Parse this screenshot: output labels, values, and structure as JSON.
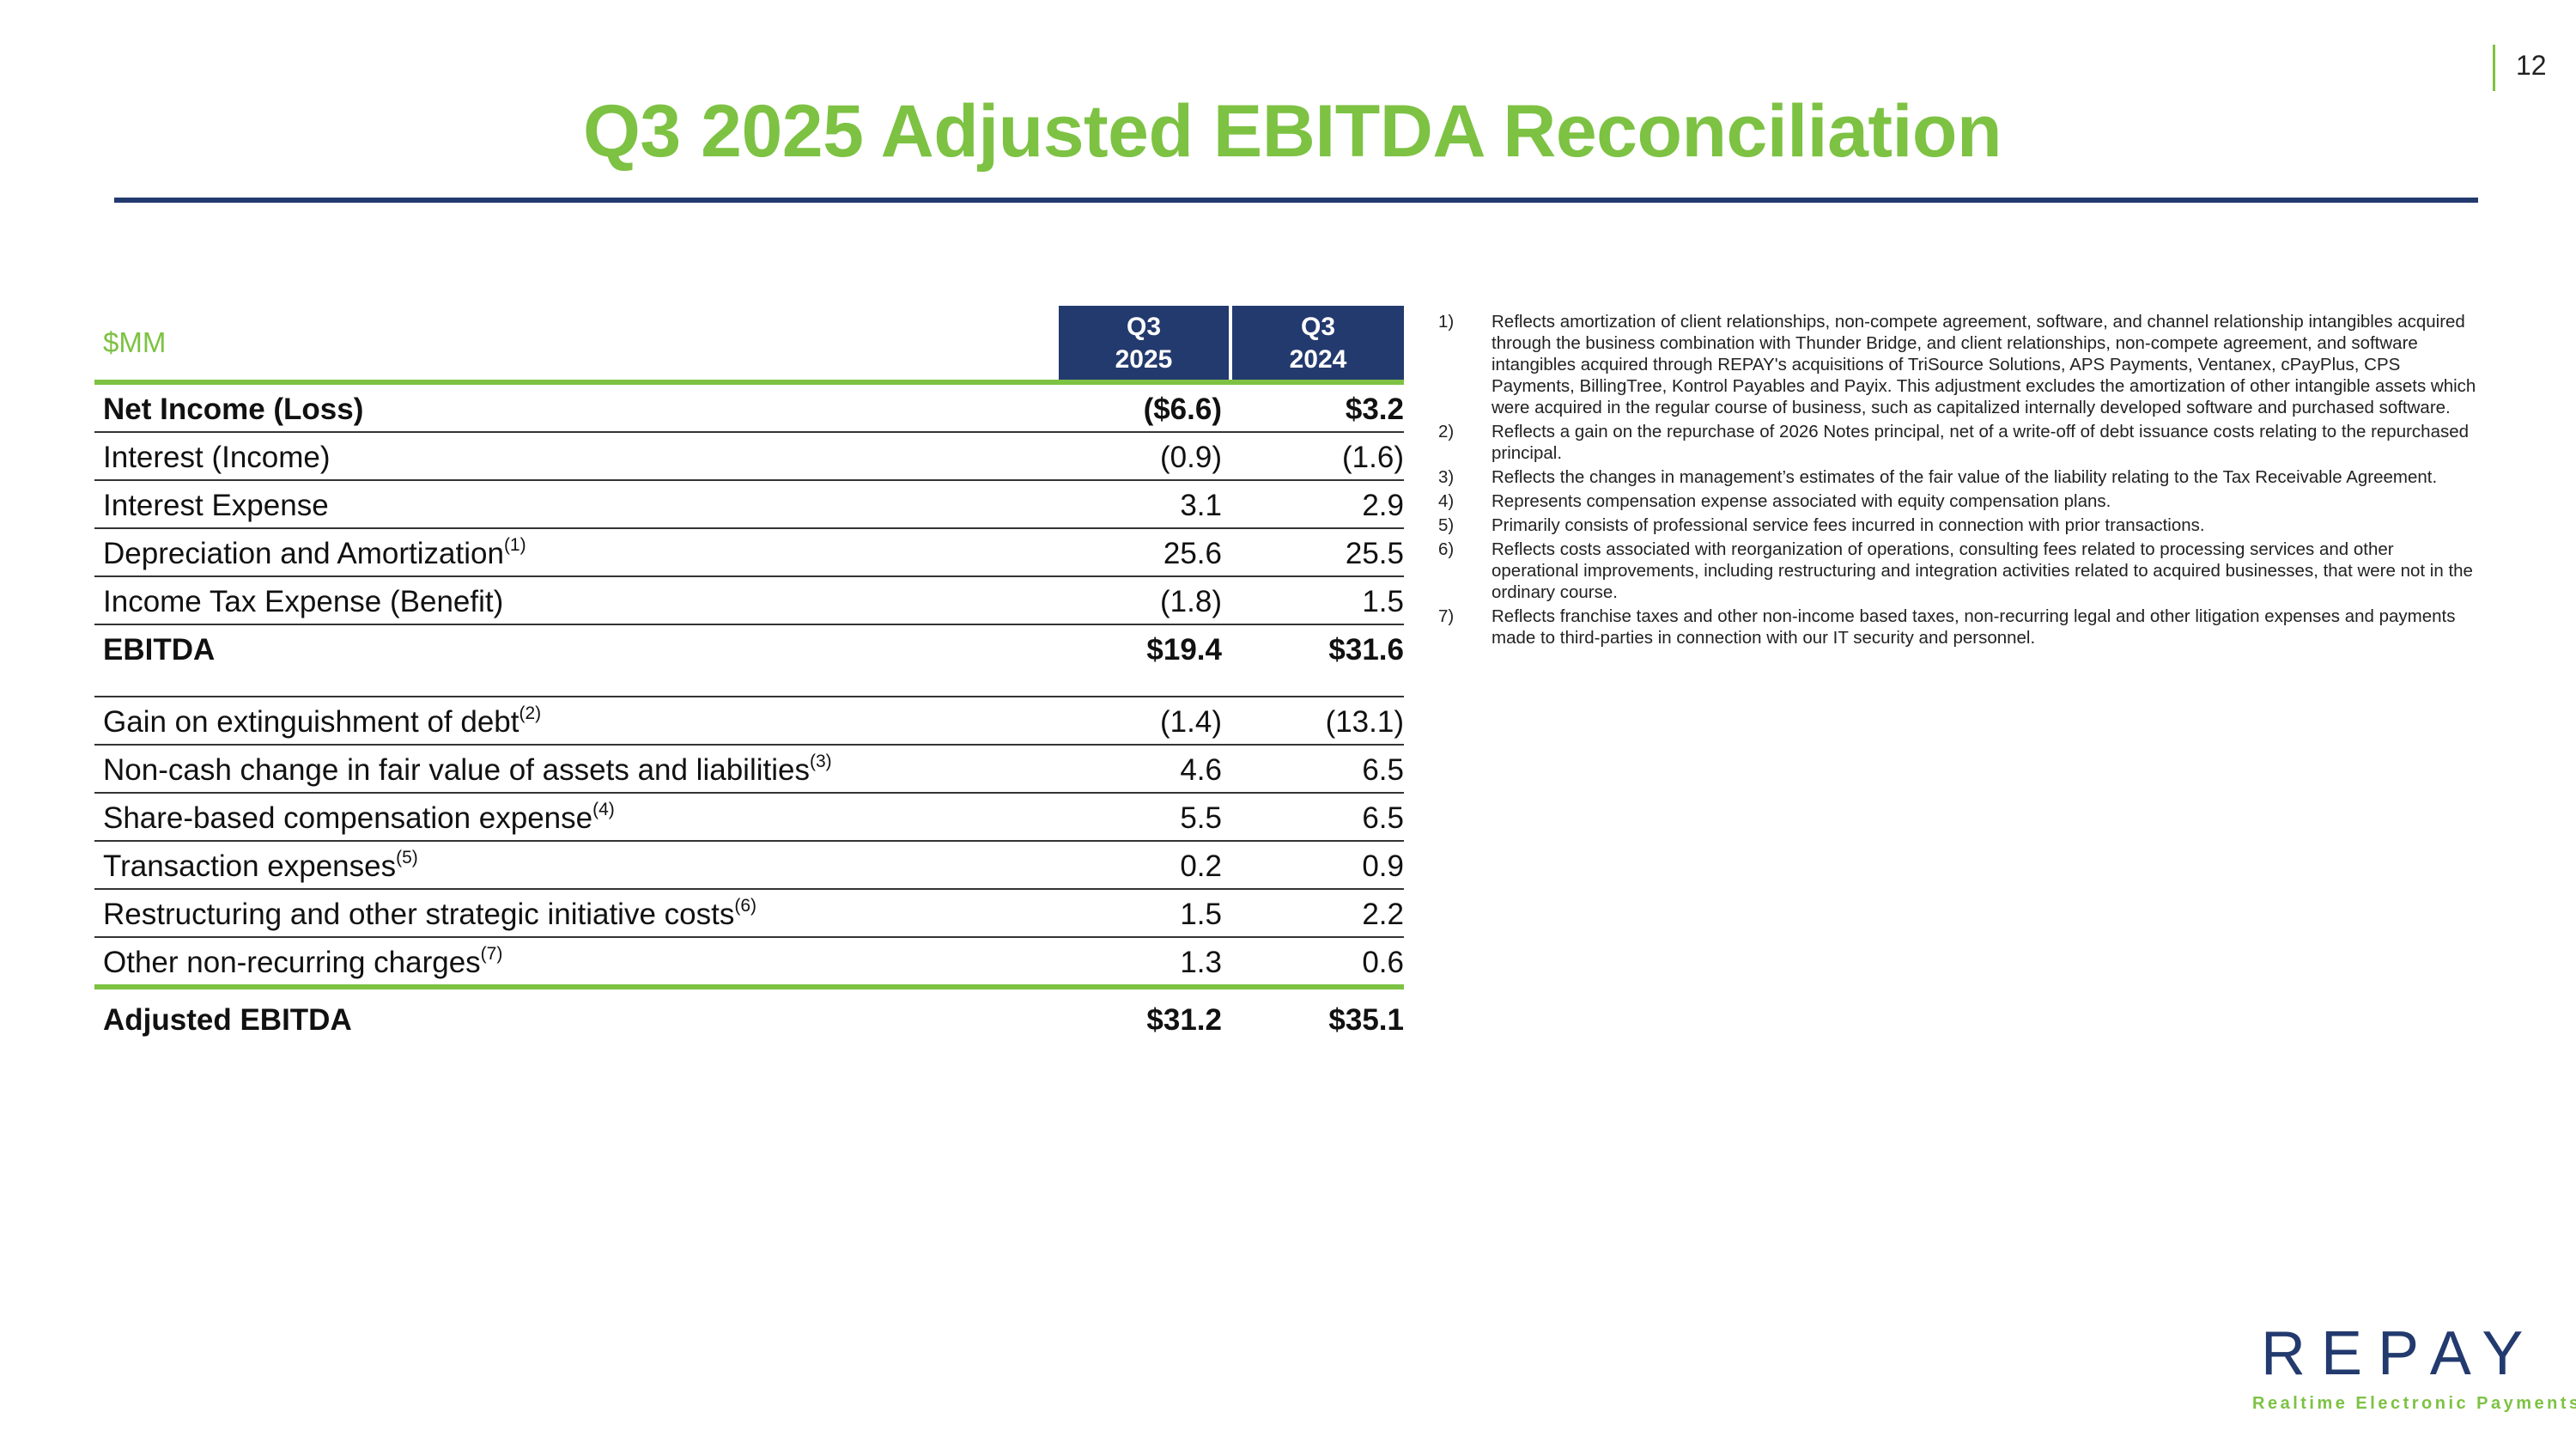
{
  "page_number": "12",
  "title": "Q3 2025 Adjusted EBITDA Reconciliation",
  "table": {
    "unit_label": "$MM",
    "col1": {
      "line1": "Q3",
      "line2": "2025"
    },
    "col2": {
      "line1": "Q3",
      "line2": "2024"
    },
    "rows": [
      {
        "label": "Net Income (Loss)",
        "sup": "",
        "v1": "($6.6)",
        "v2": "$3.2"
      },
      {
        "label": "Interest (Income)",
        "sup": "",
        "v1": "(0.9)",
        "v2": "(1.6)"
      },
      {
        "label": "Interest Expense",
        "sup": "",
        "v1": "3.1",
        "v2": "2.9"
      },
      {
        "label": "Depreciation and Amortization",
        "sup": "(1)",
        "v1": "25.6",
        "v2": "25.5"
      },
      {
        "label": "Income Tax Expense (Benefit)",
        "sup": "",
        "v1": "(1.8)",
        "v2": "1.5"
      },
      {
        "label": "EBITDA",
        "sup": "",
        "v1": "$19.4",
        "v2": "$31.6"
      },
      {
        "label": "Gain on extinguishment of debt",
        "sup": "(2)",
        "v1": "(1.4)",
        "v2": "(13.1)"
      },
      {
        "label": "Non-cash change in fair value of assets and liabilities",
        "sup": "(3)",
        "v1": "4.6",
        "v2": "6.5"
      },
      {
        "label": "Share-based compensation expense",
        "sup": "(4)",
        "v1": "5.5",
        "v2": "6.5"
      },
      {
        "label": "Transaction expenses",
        "sup": "(5)",
        "v1": "0.2",
        "v2": "0.9"
      },
      {
        "label": "Restructuring and other strategic initiative costs",
        "sup": "(6)",
        "v1": "1.5",
        "v2": "2.2"
      },
      {
        "label": "Other non-recurring charges",
        "sup": "(7)",
        "v1": "1.3",
        "v2": "0.6"
      },
      {
        "label": "Adjusted EBITDA",
        "sup": "",
        "v1": "$31.2",
        "v2": "$35.1"
      }
    ]
  },
  "footnotes": [
    {
      "num": "1)",
      "text": "Reflects amortization of client relationships, non-compete agreement, software, and channel relationship intangibles acquired through the business combination with Thunder Bridge, and client relationships, non-compete agreement, and software intangibles acquired through REPAY's acquisitions of TriSource Solutions, APS Payments, Ventanex, cPayPlus, CPS Payments, BillingTree, Kontrol Payables and Payix. This adjustment excludes the amortization of other intangible assets which were acquired in the regular course of business, such as capitalized internally developed software and purchased software."
    },
    {
      "num": "2)",
      "text": "Reflects a gain on the repurchase of 2026 Notes principal, net of a write-off of debt issuance costs relating to the repurchased principal."
    },
    {
      "num": "3)",
      "text": "Reflects the changes in management’s estimates of the fair value of the liability relating to the Tax Receivable Agreement."
    },
    {
      "num": "4)",
      "text": "Represents compensation expense associated with equity compensation plans."
    },
    {
      "num": "5)",
      "text": "Primarily consists of professional service fees incurred in connection with prior transactions."
    },
    {
      "num": "6)",
      "text": "Reflects costs associated with reorganization of operations, consulting fees related to processing services and other operational improvements, including restructuring and integration activities related to acquired businesses, that were not in the ordinary course."
    },
    {
      "num": "7)",
      "text": "Reflects franchise taxes and other non-income based taxes, non-recurring legal and other litigation expenses and payments made to third-parties in connection with our IT security and personnel."
    }
  ],
  "logo": {
    "word": "REPAY",
    "tagline": "Realtime Electronic Payments"
  },
  "colors": {
    "accent_green": "#7dc243",
    "navy": "#233a6e"
  }
}
